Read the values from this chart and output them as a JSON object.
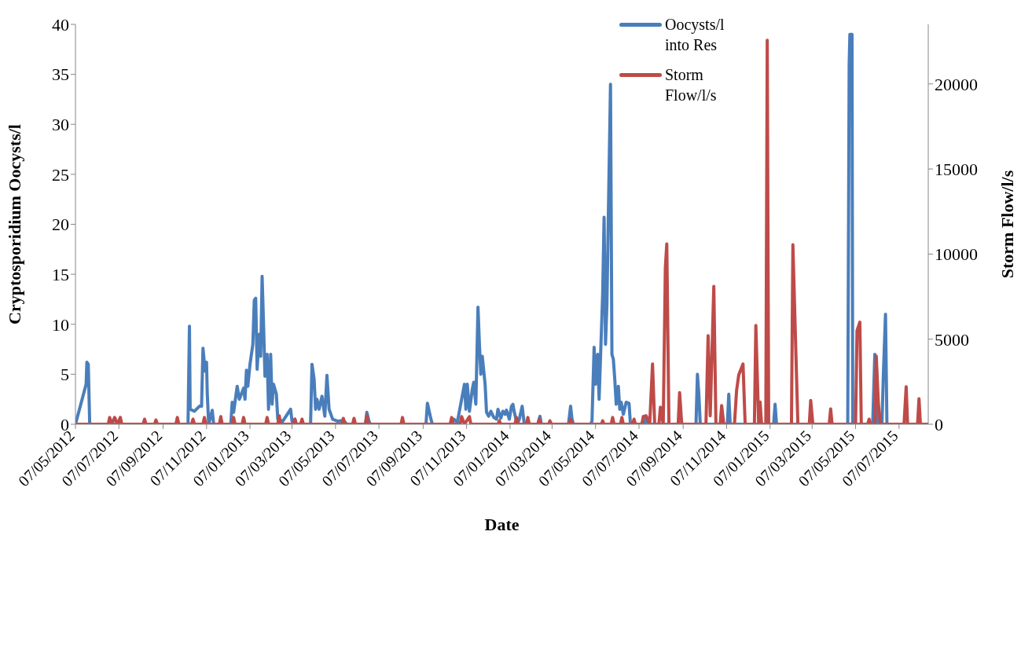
{
  "chart_data": {
    "type": "line",
    "xlabel": "Date",
    "ylabel": "Cryptosporidium Oocysts/l",
    "y2label": "Storm Flow/l/s",
    "xlim": [
      "2012-05-07",
      "2015-08-17"
    ],
    "xticks": [
      {
        "value": "2012-05-07",
        "label": "07/05/2012"
      },
      {
        "value": "2012-07-07",
        "label": "07/07/2012"
      },
      {
        "value": "2012-09-07",
        "label": "07/09/2012"
      },
      {
        "value": "2012-11-07",
        "label": "07/11/2012"
      },
      {
        "value": "2013-01-07",
        "label": "07/01/2013"
      },
      {
        "value": "2013-03-07",
        "label": "07/03/2013"
      },
      {
        "value": "2013-05-07",
        "label": "07/05/2013"
      },
      {
        "value": "2013-07-07",
        "label": "07/07/2013"
      },
      {
        "value": "2013-09-07",
        "label": "07/09/2013"
      },
      {
        "value": "2013-11-07",
        "label": "07/11/2013"
      },
      {
        "value": "2014-01-07",
        "label": "07/01/2014"
      },
      {
        "value": "2014-03-07",
        "label": "07/03/2014"
      },
      {
        "value": "2014-05-07",
        "label": "07/05/2014"
      },
      {
        "value": "2014-07-07",
        "label": "07/07/2014"
      },
      {
        "value": "2014-09-07",
        "label": "07/09/2014"
      },
      {
        "value": "2014-11-07",
        "label": "07/11/2014"
      },
      {
        "value": "2015-01-07",
        "label": "07/01/2015"
      },
      {
        "value": "2015-03-07",
        "label": "07/03/2015"
      },
      {
        "value": "2015-05-07",
        "label": "07/05/2015"
      },
      {
        "value": "2015-07-07",
        "label": "07/07/2015"
      }
    ],
    "ylim": [
      0,
      40
    ],
    "yticks": [
      0,
      5,
      10,
      15,
      20,
      25,
      30,
      35,
      40
    ],
    "y2lim": [
      0,
      23500
    ],
    "y2ticks": [
      0,
      5000,
      10000,
      15000,
      20000
    ],
    "legend": "top right",
    "series": [
      {
        "name": "Oocysts/l into Res",
        "color": "#4a7ebb",
        "x": [
          "2012-05-07",
          "2012-05-22",
          "2012-05-23",
          "2012-05-25",
          "2012-05-27",
          "2012-10-12",
          "2012-10-14",
          "2012-10-15",
          "2012-10-21",
          "2012-10-28",
          "2012-10-31",
          "2012-11-02",
          "2012-11-05",
          "2012-11-07",
          "2012-11-08",
          "2012-11-10",
          "2012-11-15",
          "2012-11-17",
          "2012-12-11",
          "2012-12-13",
          "2012-12-15",
          "2012-12-20",
          "2012-12-23",
          "2012-12-29",
          "2012-12-31",
          "2013-01-02",
          "2013-01-04",
          "2013-01-07",
          "2013-01-11",
          "2013-01-13",
          "2013-01-15",
          "2013-01-17",
          "2013-01-20",
          "2013-01-22",
          "2013-01-24",
          "2013-01-26",
          "2013-01-28",
          "2013-01-31",
          "2013-02-02",
          "2013-02-05",
          "2013-02-07",
          "2013-02-09",
          "2013-02-13",
          "2013-02-15",
          "2013-02-22",
          "2013-03-05",
          "2013-03-07",
          "2013-03-11",
          "2013-03-13",
          "2013-04-02",
          "2013-04-04",
          "2013-04-07",
          "2013-04-09",
          "2013-04-11",
          "2013-04-14",
          "2013-04-18",
          "2013-04-22",
          "2013-04-25",
          "2013-04-28",
          "2013-05-03",
          "2013-05-10",
          "2013-05-18",
          "2013-05-23",
          "2013-06-18",
          "2013-06-20",
          "2013-06-23",
          "2013-06-25",
          "2013-09-11",
          "2013-09-13",
          "2013-09-18",
          "2013-09-20",
          "2013-10-17",
          "2013-10-20",
          "2013-10-25",
          "2013-11-04",
          "2013-11-06",
          "2013-11-08",
          "2013-11-11",
          "2013-11-15",
          "2013-11-17",
          "2013-11-20",
          "2013-11-23",
          "2013-11-25",
          "2013-11-27",
          "2013-11-29",
          "2013-12-03",
          "2013-12-05",
          "2013-12-08",
          "2013-12-11",
          "2013-12-15",
          "2013-12-19",
          "2013-12-21",
          "2013-12-25",
          "2013-12-28",
          "2013-12-31",
          "2014-01-02",
          "2014-01-06",
          "2014-01-09",
          "2014-01-11",
          "2014-01-13",
          "2014-01-17",
          "2014-01-20",
          "2014-01-24",
          "2014-01-27",
          "2014-02-15",
          "2014-02-18",
          "2014-02-20",
          "2014-03-30",
          "2014-04-02",
          "2014-04-04",
          "2014-04-06",
          "2014-04-30",
          "2014-05-02",
          "2014-05-05",
          "2014-05-07",
          "2014-05-10",
          "2014-05-12",
          "2014-05-17",
          "2014-05-19",
          "2014-05-21",
          "2014-05-23",
          "2014-05-25",
          "2014-05-28",
          "2014-05-30",
          "2014-06-01",
          "2014-06-03",
          "2014-06-05",
          "2014-06-08",
          "2014-06-10",
          "2014-06-12",
          "2014-06-15",
          "2014-06-19",
          "2014-06-23",
          "2014-06-25",
          "2014-07-15",
          "2014-07-17",
          "2014-07-20",
          "2014-09-25",
          "2014-09-27",
          "2014-09-29",
          "2014-10-01",
          "2014-11-08",
          "2014-11-10",
          "2014-11-12",
          "2015-01-12",
          "2015-01-14",
          "2015-01-16",
          "2015-04-26",
          "2015-04-28",
          "2015-04-29",
          "2015-05-02",
          "2015-05-03",
          "2015-05-31",
          "2015-06-03",
          "2015-06-05",
          "2015-06-07",
          "2015-06-13",
          "2015-06-15",
          "2015-06-18",
          "2015-06-20",
          "2015-08-17"
        ],
        "values": [
          0,
          4,
          6.2,
          6,
          0,
          0,
          9.8,
          1.5,
          1.3,
          1.8,
          1.8,
          7.6,
          5.3,
          6.2,
          3.1,
          0,
          1.4,
          0,
          0,
          2.2,
          1.2,
          3.8,
          2.5,
          3.6,
          2.5,
          5.4,
          3.8,
          6,
          8,
          12.4,
          12.6,
          5.5,
          9,
          6.8,
          14.8,
          10,
          4.8,
          7,
          1.5,
          7,
          2,
          4,
          3,
          0.5,
          0.3,
          1.5,
          0.3,
          0.5,
          0,
          0,
          6,
          4.5,
          1.5,
          2.5,
          1.5,
          2.8,
          0.8,
          4.9,
          1.5,
          0.5,
          0.3,
          0.4,
          0,
          0,
          1.2,
          0.3,
          0,
          0,
          2.1,
          0.5,
          0,
          0,
          0.5,
          0.2,
          4,
          1.5,
          4,
          1.3,
          3.5,
          4.2,
          2,
          11.7,
          8,
          5,
          6.8,
          4,
          1.2,
          0.8,
          1.3,
          0.7,
          0.5,
          1.5,
          0.6,
          1.3,
          1,
          1.4,
          0.5,
          1.8,
          2,
          1.2,
          0,
          0.5,
          1.8,
          0,
          0,
          0.8,
          0,
          0,
          1.8,
          0.5,
          0,
          0,
          0.3,
          7.7,
          4,
          7,
          2.5,
          13,
          20.7,
          8,
          12,
          21,
          34,
          7,
          6.5,
          4.5,
          2,
          3.8,
          1.5,
          2.2,
          1,
          2.2,
          2.1,
          0,
          0,
          0.8,
          0,
          0,
          5,
          3,
          0,
          0,
          3,
          0,
          0,
          2,
          0,
          0,
          36,
          39,
          39,
          0,
          0,
          7,
          6.5,
          0,
          0,
          5,
          11,
          0,
          0
        ]
      },
      {
        "name": "Storm Flow/l/s",
        "color": "#be4b48",
        "axis": "y2",
        "x": [
          "2012-05-07",
          "2012-06-22",
          "2012-06-24",
          "2012-06-27",
          "2012-07-01",
          "2012-07-05",
          "2012-07-09",
          "2012-07-11",
          "2012-08-10",
          "2012-08-12",
          "2012-08-14",
          "2012-08-26",
          "2012-08-28",
          "2012-08-30",
          "2012-09-25",
          "2012-09-27",
          "2012-09-29",
          "2012-10-17",
          "2012-10-19",
          "2012-10-21",
          "2012-11-02",
          "2012-11-04",
          "2012-11-06",
          "2012-11-25",
          "2012-11-27",
          "2012-11-29",
          "2012-12-13",
          "2012-12-15",
          "2012-12-17",
          "2012-12-27",
          "2012-12-29",
          "2012-12-31",
          "2013-01-29",
          "2013-01-31",
          "2013-02-02",
          "2013-02-15",
          "2013-02-17",
          "2013-02-19",
          "2013-03-09",
          "2013-03-11",
          "2013-03-13",
          "2013-03-19",
          "2013-03-21",
          "2013-03-23",
          "2013-05-16",
          "2013-05-18",
          "2013-05-20",
          "2013-05-31",
          "2013-06-02",
          "2013-06-04",
          "2013-06-18",
          "2013-06-20",
          "2013-06-22",
          "2013-08-07",
          "2013-08-09",
          "2013-08-11",
          "2013-10-15",
          "2013-10-17",
          "2013-10-19",
          "2013-10-29",
          "2013-10-31",
          "2013-11-04",
          "2013-11-11",
          "2013-11-13",
          "2013-12-21",
          "2013-12-23",
          "2013-12-25",
          "2014-01-14",
          "2014-01-16",
          "2014-01-18",
          "2014-01-30",
          "2014-02-01",
          "2014-02-03",
          "2014-02-15",
          "2014-02-17",
          "2014-02-19",
          "2014-03-02",
          "2014-03-04",
          "2014-03-06",
          "2014-03-31",
          "2014-04-02",
          "2014-04-04",
          "2014-05-15",
          "2014-05-17",
          "2014-05-19",
          "2014-05-29",
          "2014-05-31",
          "2014-06-02",
          "2014-06-11",
          "2014-06-13",
          "2014-06-15",
          "2014-06-28",
          "2014-06-30",
          "2014-07-02",
          "2014-07-11",
          "2014-07-13",
          "2014-07-17",
          "2014-07-22",
          "2014-07-26",
          "2014-07-29",
          "2014-08-04",
          "2014-08-06",
          "2014-08-10",
          "2014-08-13",
          "2014-08-15",
          "2014-08-18",
          "2014-08-31",
          "2014-09-02",
          "2014-09-05",
          "2014-10-09",
          "2014-10-12",
          "2014-10-15",
          "2014-10-20",
          "2014-10-23",
          "2014-10-29",
          "2014-10-31",
          "2014-11-03",
          "2014-11-18",
          "2014-11-21",
          "2014-11-24",
          "2014-11-30",
          "2014-12-03",
          "2014-12-16",
          "2014-12-18",
          "2014-12-22",
          "2014-12-24",
          "2014-12-26",
          "2015-01-01",
          "2015-01-03",
          "2015-01-05",
          "2015-02-06",
          "2015-02-08",
          "2015-02-13",
          "2015-02-15",
          "2015-03-03",
          "2015-03-05",
          "2015-03-08",
          "2015-03-31",
          "2015-04-02",
          "2015-04-04",
          "2015-05-07",
          "2015-05-09",
          "2015-05-13",
          "2015-05-15",
          "2015-05-24",
          "2015-05-26",
          "2015-05-28",
          "2015-06-03",
          "2015-06-05",
          "2015-06-08",
          "2015-06-11",
          "2015-07-14",
          "2015-07-17",
          "2015-07-19",
          "2015-08-02",
          "2015-08-04",
          "2015-08-06",
          "2015-08-17"
        ],
        "values": [
          0,
          0,
          400,
          0,
          400,
          0,
          400,
          0,
          0,
          300,
          0,
          0,
          250,
          0,
          0,
          400,
          0,
          0,
          300,
          0,
          0,
          400,
          0,
          0,
          450,
          0,
          0,
          400,
          0,
          0,
          400,
          0,
          0,
          400,
          0,
          0,
          500,
          0,
          0,
          300,
          0,
          0,
          300,
          0,
          0,
          350,
          0,
          0,
          350,
          0,
          0,
          500,
          0,
          0,
          400,
          0,
          0,
          400,
          0,
          0,
          450,
          0,
          450,
          0,
          0,
          200,
          0,
          0,
          400,
          0,
          0,
          400,
          0,
          0,
          300,
          0,
          0,
          200,
          0,
          0,
          300,
          0,
          0,
          200,
          0,
          0,
          400,
          0,
          0,
          400,
          0,
          0,
          300,
          0,
          0,
          450,
          500,
          0,
          3540,
          0,
          0,
          1000,
          0,
          9200,
          10600,
          0,
          0,
          1860,
          0,
          0,
          5200,
          500,
          8100,
          0,
          0,
          1100,
          0,
          0,
          2000,
          2900,
          3540,
          0,
          0,
          5800,
          0,
          1300,
          0,
          0,
          22560,
          0,
          0,
          10550,
          3000,
          0,
          0,
          1400,
          0,
          0,
          900,
          0,
          0,
          5500,
          6000,
          0,
          0,
          300,
          0,
          0,
          4000,
          1200,
          0,
          0,
          2200,
          0,
          0,
          1500,
          0,
          0
        ]
      }
    ]
  }
}
